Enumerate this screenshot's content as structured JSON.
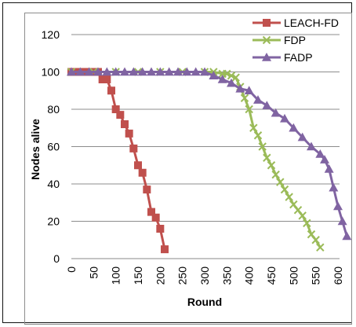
{
  "chart_data": {
    "type": "line",
    "title": "",
    "xlabel": "Round",
    "ylabel": "Nodes  alive",
    "xlim": [
      0,
      600
    ],
    "ylim": [
      0,
      120
    ],
    "xticks": [
      "0",
      "50",
      "100",
      "150",
      "200",
      "250",
      "300",
      "350",
      "400",
      "450",
      "500",
      "550",
      "600"
    ],
    "yticks": [
      "0",
      "20",
      "40",
      "60",
      "80",
      "100",
      "120"
    ],
    "grid": "horizontal",
    "legend_position": "top-right",
    "series": [
      {
        "name": "LEACH-FD",
        "color": "#c0504d",
        "marker": "square",
        "x": [
          0,
          10,
          20,
          30,
          40,
          50,
          60,
          70,
          80,
          90,
          100,
          110,
          120,
          130,
          140,
          150,
          160,
          170,
          180,
          190,
          200,
          210
        ],
        "y": [
          100,
          100,
          100,
          100,
          100,
          100,
          100,
          96,
          96,
          90,
          80,
          77,
          72,
          67,
          59,
          50,
          46,
          37,
          25,
          22,
          16,
          5
        ]
      },
      {
        "name": "FDP",
        "color": "#9bbb59",
        "marker": "x",
        "x": [
          0,
          50,
          100,
          150,
          200,
          250,
          300,
          320,
          340,
          350,
          360,
          370,
          380,
          390,
          400,
          410,
          420,
          430,
          440,
          450,
          460,
          470,
          480,
          490,
          500,
          510,
          520,
          530,
          540,
          550,
          560
        ],
        "y": [
          100,
          100,
          100,
          100,
          100,
          100,
          100,
          100,
          99,
          99,
          98,
          97,
          92,
          86,
          80,
          70,
          66,
          60,
          54,
          50,
          45,
          41,
          37,
          33,
          29,
          26,
          23,
          19,
          13,
          10,
          6
        ]
      },
      {
        "name": "FADP",
        "color": "#8064a2",
        "marker": "triangle",
        "x": [
          0,
          20,
          40,
          60,
          80,
          100,
          120,
          140,
          160,
          180,
          200,
          220,
          240,
          260,
          280,
          300,
          320,
          340,
          360,
          380,
          400,
          420,
          440,
          460,
          480,
          500,
          520,
          540,
          560,
          570,
          580,
          590,
          600,
          610,
          620
        ],
        "y": [
          100,
          100,
          100,
          100,
          100,
          100,
          100,
          100,
          100,
          100,
          100,
          100,
          100,
          100,
          100,
          100,
          98,
          96,
          94,
          91,
          90,
          85,
          82,
          78,
          75,
          70,
          65,
          60,
          56,
          53,
          48,
          38,
          28,
          20,
          12
        ]
      }
    ]
  }
}
